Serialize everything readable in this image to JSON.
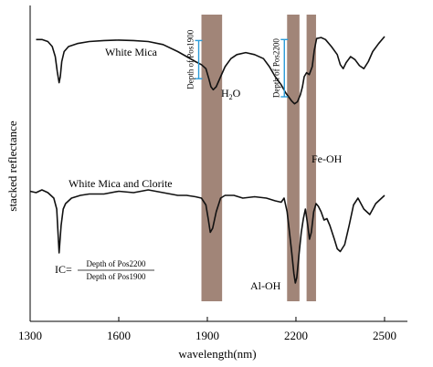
{
  "chart_data": {
    "type": "line",
    "xlabel": "wavelength(nm)",
    "ylabel": "stacked reflectance",
    "xlim": [
      1300,
      2550
    ],
    "xticks": [
      1300,
      1600,
      1900,
      2200,
      2500
    ],
    "grid": false,
    "series": [
      {
        "name": "White Mica",
        "x": [
          1320,
          1340,
          1360,
          1375,
          1385,
          1392,
          1398,
          1402,
          1407,
          1415,
          1430,
          1460,
          1500,
          1550,
          1600,
          1650,
          1700,
          1750,
          1800,
          1830,
          1860,
          1880,
          1895,
          1905,
          1912,
          1920,
          1930,
          1945,
          1960,
          1980,
          2000,
          2030,
          2060,
          2090,
          2110,
          2130,
          2150,
          2165,
          2175,
          2185,
          2195,
          2205,
          2215,
          2222,
          2228,
          2236,
          2245,
          2255,
          2262,
          2270,
          2285,
          2300,
          2320,
          2340,
          2350,
          2360,
          2370,
          2385,
          2400,
          2415,
          2430,
          2445,
          2460,
          2480,
          2500
        ],
        "y": [
          0.97,
          0.97,
          0.95,
          0.9,
          0.8,
          0.65,
          0.54,
          0.6,
          0.75,
          0.85,
          0.9,
          0.93,
          0.95,
          0.96,
          0.965,
          0.96,
          0.95,
          0.92,
          0.85,
          0.8,
          0.75,
          0.72,
          0.68,
          0.58,
          0.5,
          0.47,
          0.5,
          0.6,
          0.7,
          0.78,
          0.82,
          0.84,
          0.82,
          0.78,
          0.7,
          0.6,
          0.52,
          0.44,
          0.4,
          0.36,
          0.33,
          0.35,
          0.42,
          0.5,
          0.6,
          0.64,
          0.62,
          0.7,
          0.86,
          0.98,
          0.99,
          0.97,
          0.9,
          0.82,
          0.72,
          0.68,
          0.74,
          0.8,
          0.77,
          0.71,
          0.68,
          0.75,
          0.85,
          0.93,
          1.0
        ]
      },
      {
        "name": "White Mica and Clorite",
        "x": [
          1300,
          1320,
          1340,
          1360,
          1380,
          1390,
          1398,
          1405,
          1412,
          1420,
          1440,
          1470,
          1500,
          1550,
          1600,
          1650,
          1700,
          1750,
          1800,
          1830,
          1860,
          1880,
          1895,
          1903,
          1910,
          1918,
          1930,
          1945,
          1960,
          1990,
          2020,
          2060,
          2100,
          2130,
          2150,
          2160,
          2170,
          2178,
          2186,
          2193,
          2198,
          2203,
          2210,
          2218,
          2225,
          2232,
          2240,
          2246,
          2252,
          2260,
          2268,
          2276,
          2285,
          2295,
          2305,
          2315,
          2330,
          2340,
          2350,
          2365,
          2380,
          2395,
          2410,
          2430,
          2450,
          2470,
          2500
        ],
        "y": [
          0.75,
          0.74,
          0.76,
          0.74,
          0.7,
          0.62,
          0.3,
          0.5,
          0.62,
          0.66,
          0.7,
          0.72,
          0.73,
          0.73,
          0.75,
          0.74,
          0.76,
          0.74,
          0.72,
          0.72,
          0.71,
          0.7,
          0.65,
          0.55,
          0.45,
          0.48,
          0.6,
          0.7,
          0.72,
          0.72,
          0.7,
          0.71,
          0.7,
          0.68,
          0.67,
          0.7,
          0.6,
          0.45,
          0.3,
          0.15,
          0.08,
          0.12,
          0.28,
          0.45,
          0.55,
          0.62,
          0.5,
          0.4,
          0.45,
          0.6,
          0.66,
          0.64,
          0.6,
          0.54,
          0.55,
          0.5,
          0.4,
          0.33,
          0.31,
          0.36,
          0.5,
          0.65,
          0.7,
          0.62,
          0.58,
          0.66,
          0.72
        ]
      }
    ],
    "shaded_bands": [
      {
        "from": 1880,
        "to": 1950
      },
      {
        "from": 2170,
        "to": 2212
      },
      {
        "from": 2236,
        "to": 2268
      }
    ],
    "depth_markers": [
      {
        "label": "Depth of Pos1900",
        "x": 1880,
        "y_top": 0.96,
        "y_bottom": 0.58
      },
      {
        "label": "Depth of Pos2200",
        "x": 2170,
        "y_top": 0.97,
        "y_bottom": 0.4
      }
    ],
    "annotations": {
      "series1_label": "White Mica",
      "series2_label": "White Mica and Clorite",
      "water_label": "H2O",
      "feoh_label": "Fe-OH",
      "aloh_label": "Al-OH",
      "formula_lhs": "IC=",
      "formula_numerator": "Depth of Pos2200",
      "formula_denominator": "Depth of Pos1900"
    },
    "colors": {
      "line": "#111111",
      "band": "#a18578",
      "marker": "#2a9bd8"
    }
  }
}
